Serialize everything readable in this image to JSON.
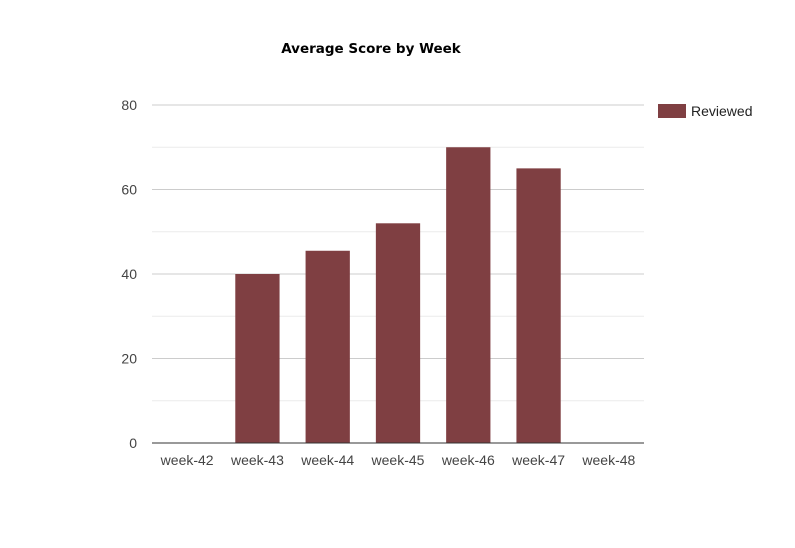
{
  "chart_data": {
    "type": "bar",
    "title": "Average Score by Week",
    "xlabel": "",
    "ylabel": "",
    "categories": [
      "week-42",
      "week-43",
      "week-44",
      "week-45",
      "week-46",
      "week-47",
      "week-48"
    ],
    "series": [
      {
        "name": "Reviewed",
        "values": [
          0,
          40,
          45.5,
          52,
          70,
          65,
          0
        ]
      }
    ],
    "ylim": [
      0,
      80
    ],
    "yticks": [
      0,
      20,
      40,
      60,
      80
    ],
    "minor_grid": [
      10,
      30,
      50,
      70
    ],
    "grid": true,
    "legend_position": "right",
    "colors": {
      "bar": "#7f3f42",
      "grid": "#cccccc",
      "minor_grid": "#ebebeb",
      "axis": "#333333"
    }
  }
}
